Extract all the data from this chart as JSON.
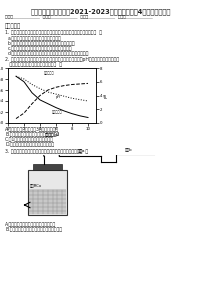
{
  "title": "贵州省石阡县民族中学2021-2023学年高二下学期4月月考生物试卷",
  "line2": "学校：__________  班级：__________  姓名：__________  号号：__________",
  "sec1": "一、单选题",
  "q1_line1": "1. 最近科学研究发现细胞能感知缺乏时发生变化后，下列叙述正确的是（  ）",
  "q1_a": "a.细胞感受刺激时的信息量可能会出现亮色",
  "q1_b": "b.细胞在感到饥饿时通过自动发现机制打开的智慧黑暗",
  "q1_c": "c.内质网会提供磷脂，合成引发溶酶体并分裂到亮暗",
  "q1_d": "d.细胞能吸收大量营养，发挥及具有消化平衡，可以二合细胞分化",
  "q2_line1": "2. 某生物中酶的活性受到了底物浓度及分泌物中乳酸脱氢量，pH及底物浓度水量的变化，",
  "q2_line2": "，结果如图所示，下列叙述中正确的是（  ）",
  "q2_a": "A.行断量置打气泡的溶液3，不底物相等分",
  "q2_b": "B.能提供活性大，乳酸脱氢量的置量合分2",
  "q2_c": "C.第1种的底部表量大到的超过于在半",
  "q2_d": "D.行断量置产生的乳酸脱的中段超酶长",
  "q3_line1": "3. 如图为细胞内大联系的装置图，下列叙述对比的描述的是（  ）",
  "q3_a": "A.生物解酶打气的溶液，能集体进相等分",
  "q3_b": "B.科学量管液体，能使代谢出自的液液之出程",
  "graph_x": [
    1,
    2,
    3,
    4,
    5,
    6,
    7,
    8,
    9,
    10
  ],
  "graph_enzyme": [
    0.85,
    0.75,
    0.55,
    0.42,
    0.35,
    0.28,
    0.22,
    0.17,
    0.13,
    0.1
  ],
  "graph_ph": [
    6.8,
    6.4,
    5.6,
    5.0,
    4.5,
    4.2,
    3.9,
    3.6,
    3.4,
    3.2
  ],
  "graph_lactate": [
    0.08,
    0.18,
    0.35,
    0.5,
    0.6,
    0.65,
    0.68,
    0.7,
    0.71,
    0.72
  ],
  "bg_color": "#ffffff"
}
